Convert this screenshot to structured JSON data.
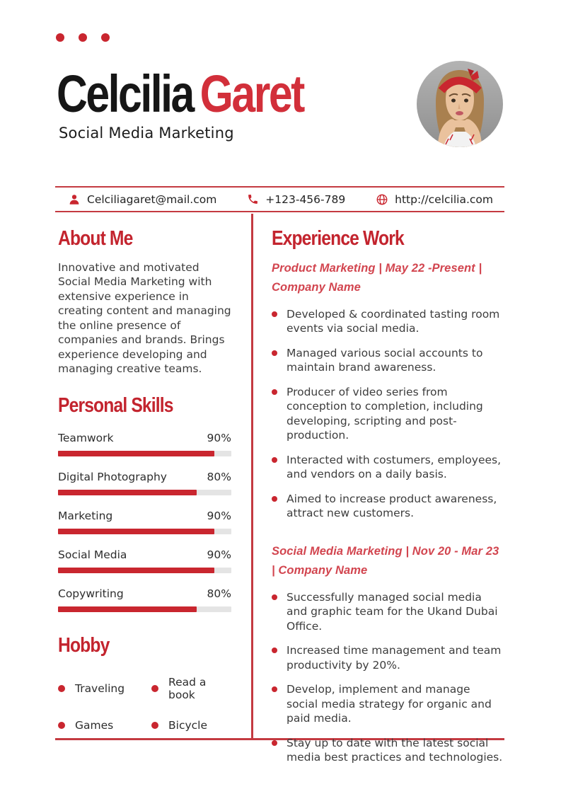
{
  "colors": {
    "accent": "#c9262f",
    "name-red": "#d22f3a",
    "heading-red": "#c3242e",
    "italic-red": "#d2454f",
    "line-red": "#c43a41",
    "track": "#e4e4e4",
    "ink": "#161616",
    "body": "#3d3d3d"
  },
  "header": {
    "first_name": "Celcilia",
    "last_name": "Garet",
    "subtitle": "Social Media Marketing"
  },
  "contact": {
    "email": "Celciliagaret@mail.com",
    "phone": "+123-456-789",
    "website": "http://celcilia.com"
  },
  "about": {
    "title": "About Me",
    "text": "Innovative and motivated Social Media Marketing with extensive experience in creating content and managing the online presence of companies and brands. Brings experience developing and managing creative teams."
  },
  "skills": {
    "title": "Personal Skills",
    "items": [
      {
        "label": "Teamwork",
        "percent": "90%",
        "value": 90
      },
      {
        "label": "Digital Photography",
        "percent": "80%",
        "value": 80
      },
      {
        "label": "Marketing",
        "percent": "90%",
        "value": 90
      },
      {
        "label": "Social Media",
        "percent": "90%",
        "value": 90
      },
      {
        "label": "Copywriting",
        "percent": "80%",
        "value": 80
      }
    ]
  },
  "hobby": {
    "title": "Hobby",
    "items": [
      "Traveling",
      "Read a book",
      "Games",
      "Bicycle"
    ]
  },
  "experience": {
    "title": "Experience Work",
    "jobs": [
      {
        "heading": "Product Marketing | May 22 -Present | Company Name",
        "bullets": [
          "Developed & coordinated tasting room events via social media.",
          "Managed various social accounts to maintain brand awareness.",
          "Producer of video series from conception to completion, including developing, scripting and post-production.",
          "Interacted with costumers, employees, and vendors on a daily basis.",
          "Aimed to increase product awareness, attract new customers."
        ]
      },
      {
        "heading": "Social Media Marketing | Nov 20 - Mar 23 | Company Name",
        "bullets": [
          "Successfully managed social media and graphic team for the Ukand Dubai Office.",
          "Increased time management and team productivity by 20%.",
          "Develop, implement and manage social media strategy for organic and paid media.",
          "Stay up to date with the latest social media best practices and technologies."
        ]
      }
    ]
  }
}
